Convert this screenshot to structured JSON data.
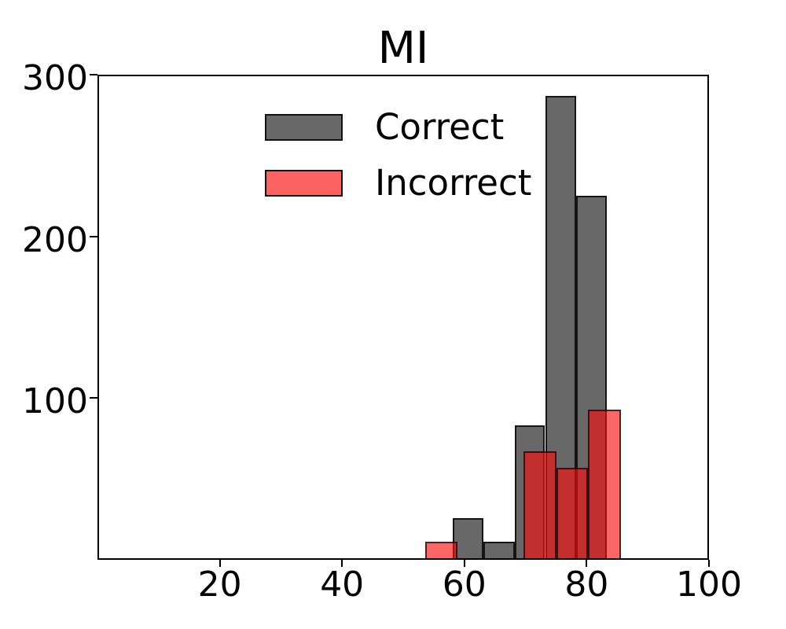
{
  "chart_data": {
    "type": "bar",
    "subtype": "overlaid-histogram",
    "title": "MI",
    "xlabel": "",
    "ylabel": "",
    "xlim": [
      0,
      100
    ],
    "ylim": [
      0,
      300
    ],
    "x_ticks": [
      20,
      40,
      60,
      80,
      100
    ],
    "y_ticks": [
      100,
      200,
      300
    ],
    "grid": false,
    "legend_position": "upper-left-inside",
    "series": [
      {
        "name": "Correct",
        "fill": "#686868",
        "legend_fill": "#686868",
        "bins": [
          {
            "from": 58.1,
            "to": 63.1,
            "count": 26
          },
          {
            "from": 63.1,
            "to": 68.2,
            "count": 11
          },
          {
            "from": 68.2,
            "to": 73.2,
            "count": 83
          },
          {
            "from": 73.2,
            "to": 78.3,
            "count": 287
          },
          {
            "from": 78.3,
            "to": 83.3,
            "count": 225
          }
        ]
      },
      {
        "name": "Incorrect",
        "fill": "rgba(249,15,15,0.63)",
        "legend_fill": "#fb6262",
        "bins": [
          {
            "from": 53.6,
            "to": 58.9,
            "count": 11
          },
          {
            "from": 58.9,
            "to": 64.2,
            "count": 0
          },
          {
            "from": 64.2,
            "to": 69.6,
            "count": 0
          },
          {
            "from": 69.6,
            "to": 75.0,
            "count": 67
          },
          {
            "from": 75.0,
            "to": 80.2,
            "count": 57
          },
          {
            "from": 80.2,
            "to": 85.6,
            "count": 93
          }
        ]
      }
    ]
  }
}
